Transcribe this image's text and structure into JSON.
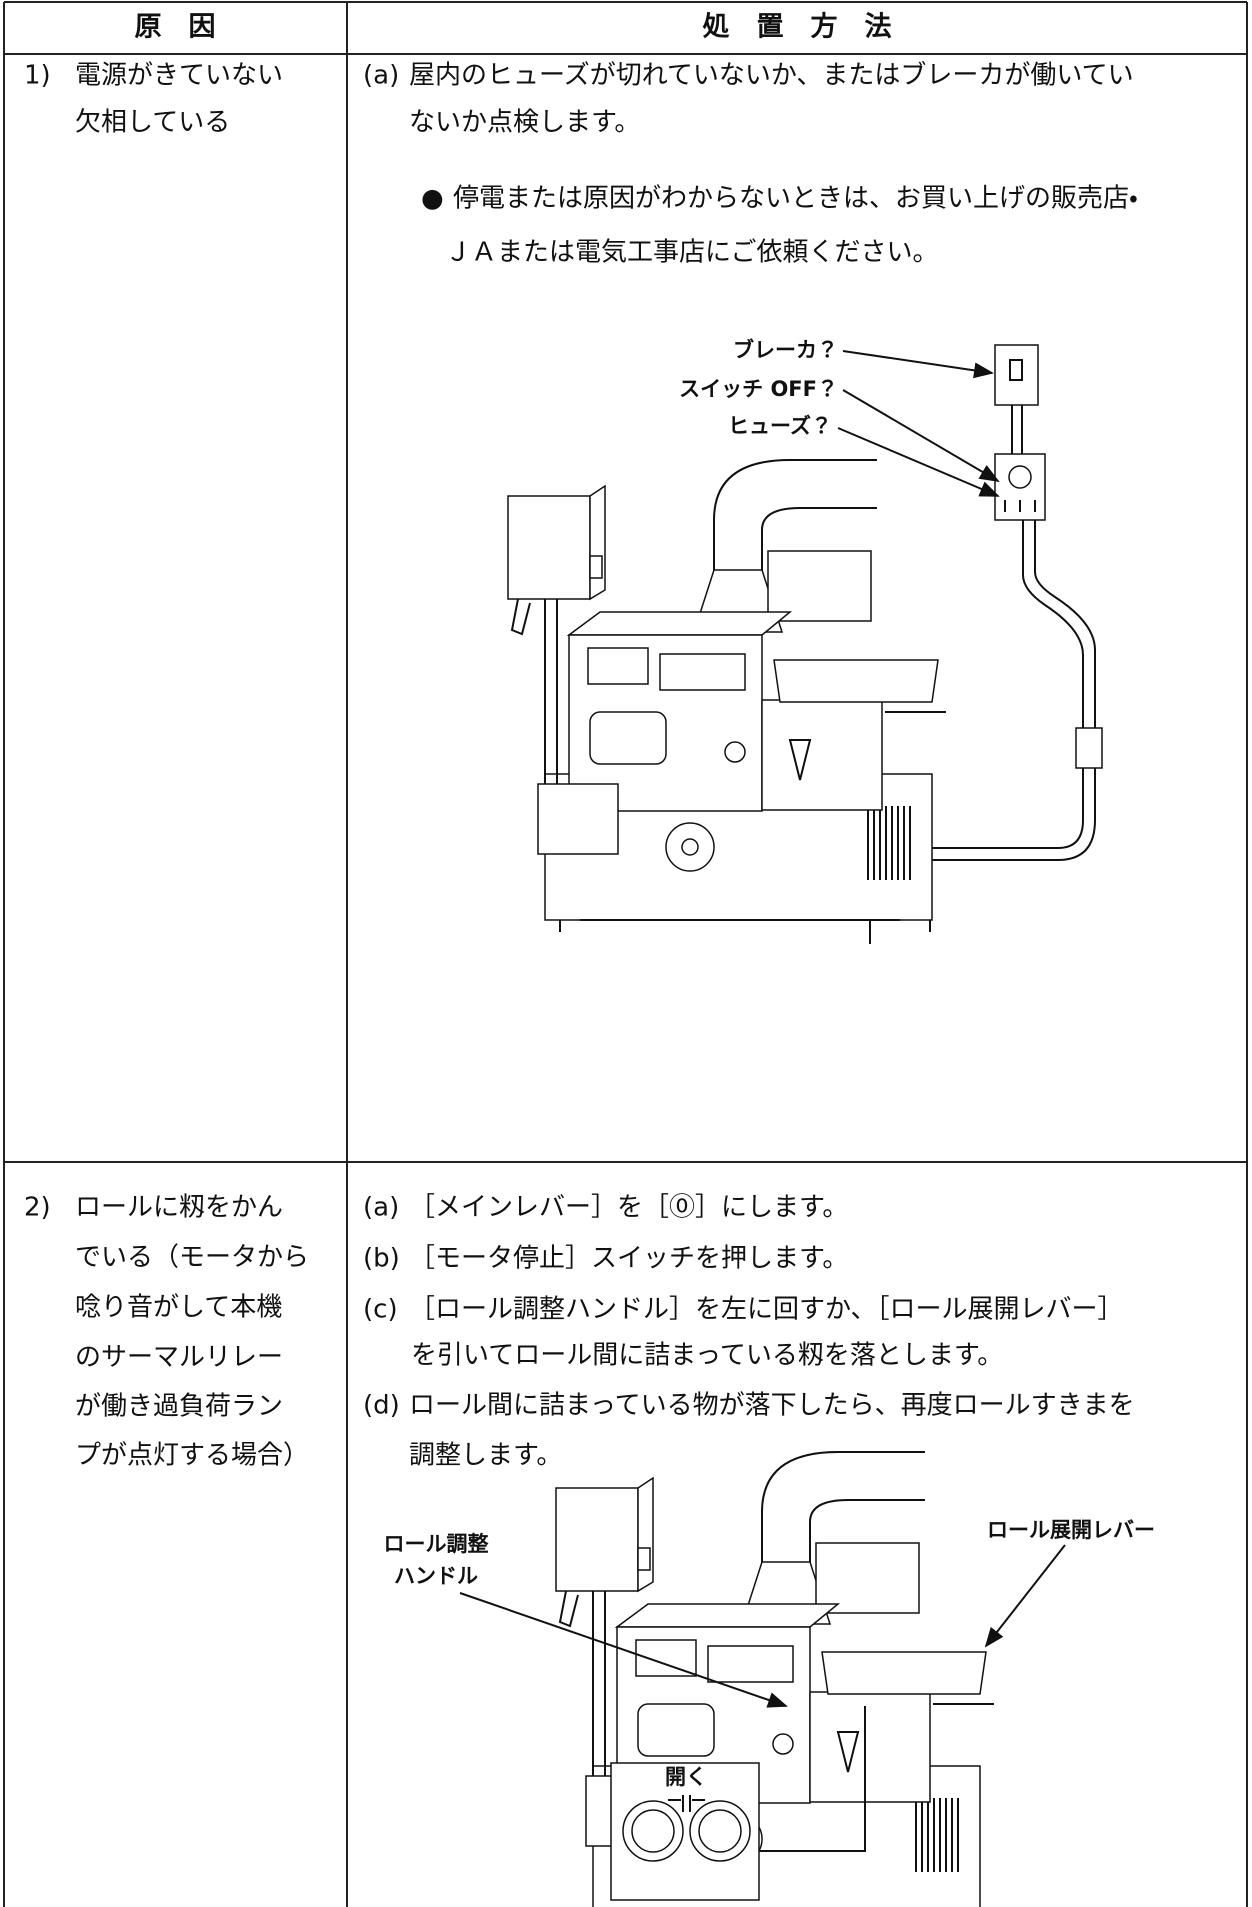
{
  "table": {
    "header": [
      "原　因",
      "処　置　方　法"
    ],
    "rows": [
      {
        "cause": {
          "number": "1)",
          "lines": [
            "電源がきていない",
            "欠相している"
          ]
        },
        "remedy": [
          {
            "label": "(a)",
            "lines": [
              "屋内のヒューズが切れていないか、またはブレーカが働いてい",
              "ないか点検します。"
            ]
          },
          {
            "label": "●",
            "lines": [
              "停電または原因がわからないときは、お買い上げの販売店・",
              "ＪＡまたは電気工事店にご依頼ください。"
            ]
          }
        ],
        "figure": {
          "labels": [
            "ブレーカ？",
            "スイッチ OFF？",
            "ヒューズ？"
          ]
        }
      },
      {
        "cause": {
          "number": "2)",
          "lines": [
            "ロールに籾をかん",
            "でいる（モータから",
            "唸り音がして本機",
            "のサーマルリレー",
            "が働き過負荷ラン",
            "プが点灯する場合）"
          ]
        },
        "remedy": [
          {
            "label": "(a)",
            "lines": [
              "［メインレバー］を［⓪］にします。"
            ]
          },
          {
            "label": "(b)",
            "lines": [
              "［モータ停止］スイッチを押します。"
            ]
          },
          {
            "label": "(c)",
            "lines": [
              "［ロール調整ハンドル］を左に回すか、［ロール展開レバー］",
              "を引いてロール間に詰まっている籾を落とします。"
            ]
          },
          {
            "label": "(d)",
            "lines": [
              "ロール間に詰まっている物が落下したら、再度ロールすきまを",
              "調整します。"
            ]
          }
        ],
        "figure": {
          "labels": [
            "ロール調整",
            "ハンドル",
            "ロール展開レバー",
            "開く"
          ]
        }
      }
    ]
  }
}
